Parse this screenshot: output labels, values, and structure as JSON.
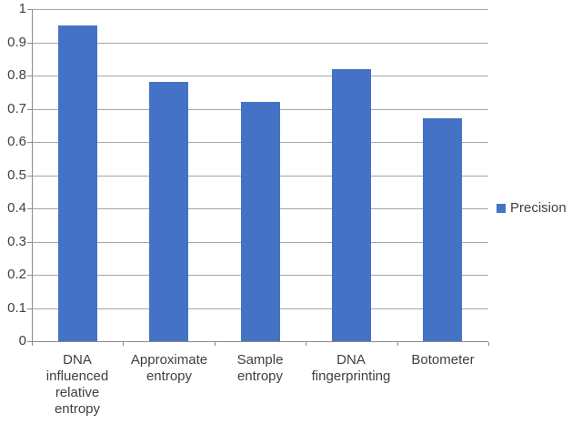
{
  "chart_data": {
    "type": "bar",
    "categories": [
      "DNA influenced relative entropy",
      "Approximate entropy",
      "Sample entropy",
      "DNA fingerprinting",
      "Botometer"
    ],
    "series": [
      {
        "name": "Precision",
        "values": [
          0.95,
          0.78,
          0.72,
          0.82,
          0.67
        ]
      }
    ],
    "title": "",
    "xlabel": "",
    "ylabel": "",
    "ylim": [
      0,
      1
    ],
    "ytick_labels": [
      "0",
      "0.1",
      "0.2",
      "0.3",
      "0.4",
      "0.5",
      "0.6",
      "0.7",
      "0.8",
      "0.9",
      "1"
    ],
    "grid": true,
    "legend": {
      "label": "Precision",
      "position": "right"
    },
    "colors": {
      "bar": "#4473C5",
      "gridline": "#A6A6A6",
      "axis": "#8C8C8C",
      "text": "#404040",
      "background": "#FFFFFF"
    }
  }
}
